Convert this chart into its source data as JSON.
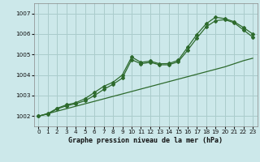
{
  "xlabel": "Graphe pression niveau de la mer (hPa)",
  "background_color": "#cce8ea",
  "grid_color": "#aacccc",
  "line_color": "#2d6a2d",
  "ylim": [
    1001.5,
    1007.5
  ],
  "xlim": [
    -0.5,
    23.5
  ],
  "yticks": [
    1002,
    1003,
    1004,
    1005,
    1006,
    1007
  ],
  "xticks": [
    0,
    1,
    2,
    3,
    4,
    5,
    6,
    7,
    8,
    9,
    10,
    11,
    12,
    13,
    14,
    15,
    16,
    17,
    18,
    19,
    20,
    21,
    22,
    23
  ],
  "series_straight": [
    1002.0,
    1002.12,
    1002.24,
    1002.36,
    1002.48,
    1002.6,
    1002.72,
    1002.84,
    1002.96,
    1003.08,
    1003.2,
    1003.32,
    1003.44,
    1003.56,
    1003.68,
    1003.8,
    1003.92,
    1004.04,
    1004.16,
    1004.28,
    1004.4,
    1004.55,
    1004.7,
    1004.82
  ],
  "series_marked1": [
    1002.0,
    1002.1,
    1002.35,
    1002.5,
    1002.6,
    1002.75,
    1003.0,
    1003.3,
    1003.55,
    1003.85,
    1004.75,
    1004.55,
    1004.62,
    1004.5,
    1004.5,
    1004.65,
    1005.2,
    1005.8,
    1006.35,
    1006.65,
    1006.7,
    1006.55,
    1006.2,
    1005.85
  ],
  "series_marked2": [
    1002.0,
    1002.12,
    1002.38,
    1002.55,
    1002.65,
    1002.85,
    1003.15,
    1003.45,
    1003.65,
    1004.0,
    1004.88,
    1004.62,
    1004.68,
    1004.55,
    1004.56,
    1004.72,
    1005.35,
    1005.98,
    1006.5,
    1006.82,
    1006.75,
    1006.6,
    1006.32,
    1006.0
  ]
}
